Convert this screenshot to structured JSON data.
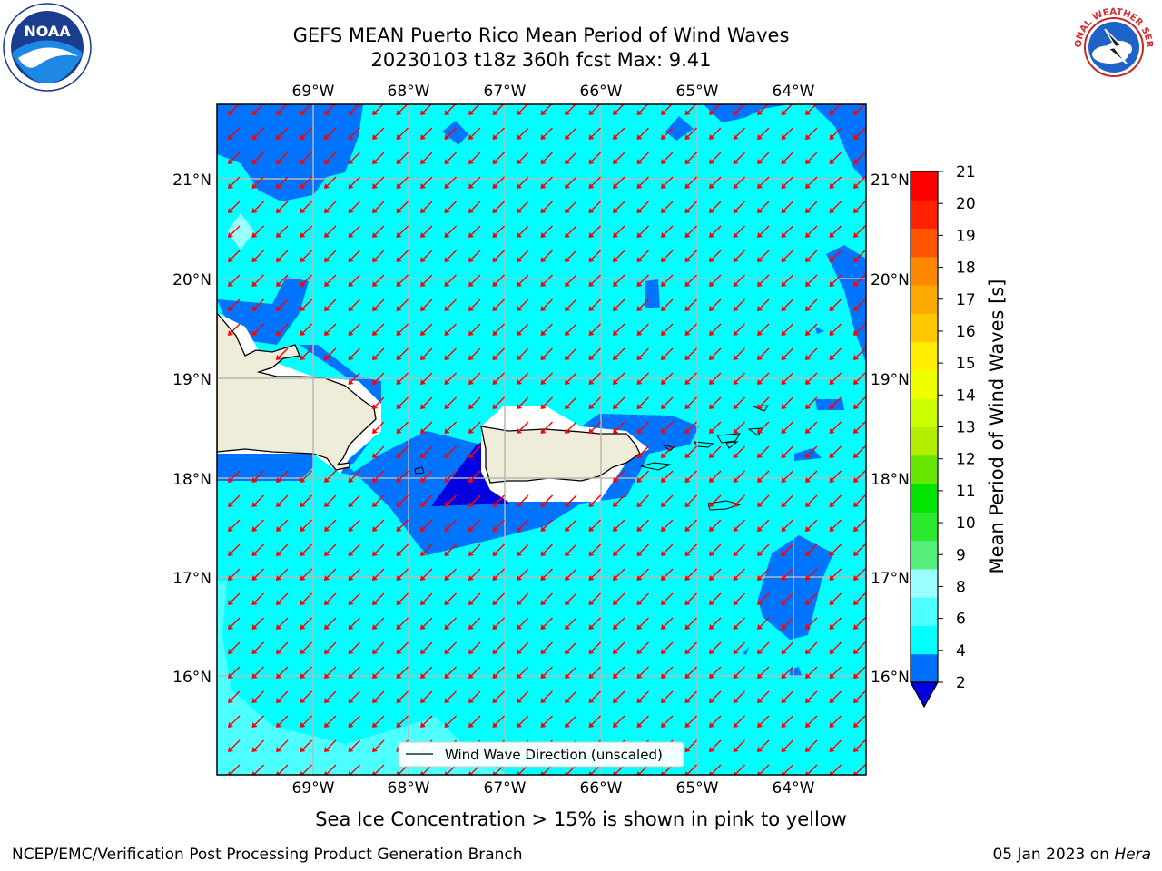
{
  "title_line1": "GEFS MEAN Puerto Rico Mean Period of Wind Waves",
  "title_line2": "20230103 t18z 360h fcst   Max: 9.41",
  "lon_labels": [
    "69°W",
    "68°W",
    "67°W",
    "66°W",
    "65°W",
    "64°W"
  ],
  "lat_labels": [
    "21°N",
    "20°N",
    "19°N",
    "18°N",
    "17°N",
    "16°N"
  ],
  "legend_label": "Wind Wave Direction (unscaled)",
  "colorbar": {
    "label": "Mean Period of Wind Waves [s]",
    "ticks": [
      "2",
      "4",
      "6",
      "8",
      "9",
      "10",
      "11",
      "12",
      "13",
      "14",
      "15",
      "16",
      "17",
      "18",
      "19",
      "20",
      "21"
    ],
    "colors": [
      "#0070ff",
      "#00ffff",
      "#4dffff",
      "#99ffff",
      "#55f07a",
      "#2ee82e",
      "#00e400",
      "#66e600",
      "#b3ee00",
      "#ccff00",
      "#eeff00",
      "#ffee00",
      "#ffc800",
      "#ffaa00",
      "#ff8800",
      "#ff5500",
      "#ff2200",
      "#ff0000"
    ],
    "under_color": "#0000e0"
  },
  "colors": {
    "ocean": "#00ffff",
    "low_period": "#0073ff",
    "lowest_period": "#0000e0",
    "land": "#efedda",
    "arrow": "#ff0000",
    "grid": "#b8b8b8"
  },
  "sea_ice_note": "Sea Ice Concentration > 15% is shown in pink to yellow",
  "footer_left": "NCEP/EMC/Verification Post Processing Product Generation Branch",
  "footer_date": "05 Jan 2023 on ",
  "footer_host": "Hera",
  "logos": {
    "left": "noaa-logo",
    "right": "nws-logo",
    "noaa_text": "NOAA",
    "nws_text": "NATIONAL WEATHER SERVICE"
  }
}
